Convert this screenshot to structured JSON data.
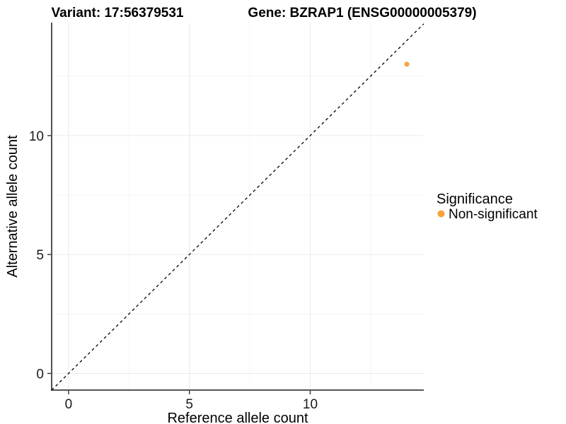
{
  "chart_data": {
    "type": "scatter",
    "titles": {
      "left": "Variant: 17:56379531",
      "right": "Gene: BZRAP1 (ENSG00000005379)"
    },
    "xlabel": "Reference allele count",
    "ylabel": "Alternative allele count",
    "xlim": [
      -0.7,
      14.7
    ],
    "ylim": [
      -0.7,
      14.75
    ],
    "x_ticks": [
      0,
      5,
      10
    ],
    "y_ticks": [
      0,
      5,
      10
    ],
    "x_minor_ticks": [
      2.5,
      7.5,
      12.5
    ],
    "y_minor_ticks": [
      2.5,
      7.5,
      12.5
    ],
    "grid": "major and minor gridlines, white panel",
    "reference_line": {
      "type": "identity y=x",
      "style": "dashed",
      "color": "#000000"
    },
    "series": [
      {
        "name": "Non-significant",
        "color": "#F7A23A",
        "points": [
          {
            "x": 14,
            "y": 13
          }
        ]
      }
    ],
    "legend": {
      "title": "Significance",
      "position": "right",
      "items": [
        {
          "label": "Non-significant",
          "color": "#F7A23A"
        }
      ]
    }
  },
  "colors": {
    "background": "#FFFFFF",
    "grid_major": "#EBEBEB",
    "grid_minor": "#F4F4F4",
    "axis_line": "#3C3C3C",
    "tick_mark": "#333333",
    "tick_label": "#1A1A1A",
    "point": "#F7A23A"
  }
}
